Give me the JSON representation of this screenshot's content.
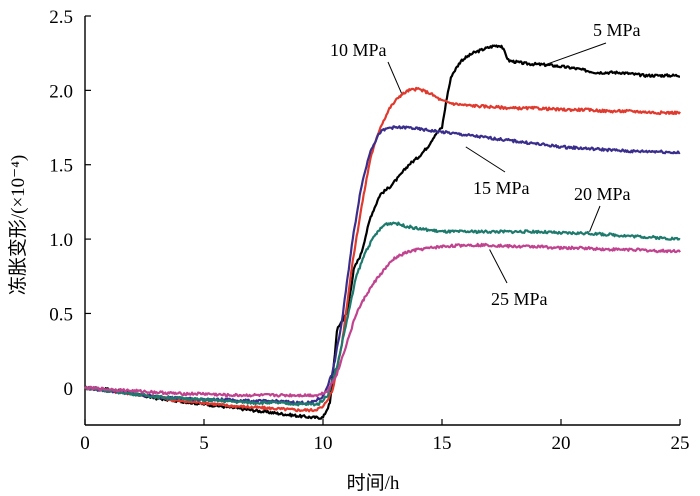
{
  "chart_data": {
    "type": "line",
    "xlabel": "时间/h",
    "ylabel": "冻胀变形/(×10⁻⁴)",
    "xlim": [
      0,
      25
    ],
    "ylim": [
      -0.25,
      2.5
    ],
    "x_ticks": [
      0,
      5,
      10,
      15,
      20,
      25
    ],
    "x_tick_labels": [
      "0",
      "5",
      "10",
      "15",
      "20",
      "25"
    ],
    "y_ticks": [
      0,
      0.5,
      1.0,
      1.5,
      2.0,
      2.5
    ],
    "y_tick_labels": [
      "0",
      "0.5",
      "1.0",
      "1.5",
      "2.0",
      "2.5"
    ],
    "grid": false,
    "legend": "inline labels with leader lines",
    "series": [
      {
        "name": "5 MPa",
        "color": "#000000",
        "label_point": [
          19.3,
          2.17
        ],
        "x": [
          0,
          1,
          2,
          3,
          4,
          5,
          6,
          7,
          8,
          9,
          9.6,
          10.0,
          10.3,
          10.6,
          11.0,
          11.3,
          11.6,
          12.0,
          12.4,
          12.8,
          13.2,
          13.6,
          14.0,
          14.4,
          14.7,
          15.0,
          15.2,
          15.4,
          15.8,
          16.3,
          16.8,
          17.2,
          17.5,
          17.8,
          18.5,
          19.5,
          20.5,
          21.5,
          22.5,
          23.5,
          24.5,
          25
        ],
        "y": [
          0,
          -0.01,
          -0.04,
          -0.07,
          -0.09,
          -0.11,
          -0.13,
          -0.15,
          -0.17,
          -0.19,
          -0.2,
          -0.2,
          -0.1,
          0.4,
          0.5,
          0.8,
          0.9,
          1.15,
          1.3,
          1.35,
          1.42,
          1.5,
          1.55,
          1.62,
          1.7,
          1.75,
          1.95,
          2.1,
          2.2,
          2.25,
          2.28,
          2.3,
          2.3,
          2.2,
          2.18,
          2.17,
          2.15,
          2.12,
          2.12,
          2.1,
          2.1,
          2.1
        ]
      },
      {
        "name": "10 MPa",
        "color": "#e03a2e",
        "label_point": [
          13.3,
          1.98
        ],
        "x": [
          0,
          1,
          2,
          3,
          4,
          5,
          6,
          7,
          8,
          9,
          9.6,
          10.0,
          10.4,
          10.8,
          11.2,
          11.6,
          12.0,
          12.4,
          12.8,
          13.2,
          13.6,
          14.0,
          14.5,
          15.0,
          15.5,
          16.0,
          17.0,
          18.0,
          19.0,
          20.0,
          21.0,
          22.0,
          23.0,
          24.0,
          25
        ],
        "y": [
          0,
          -0.02,
          -0.04,
          -0.06,
          -0.09,
          -0.1,
          -0.12,
          -0.13,
          -0.14,
          -0.15,
          -0.15,
          -0.13,
          -0.02,
          0.3,
          0.8,
          1.2,
          1.55,
          1.75,
          1.88,
          1.96,
          2.0,
          2.01,
          1.98,
          1.93,
          1.91,
          1.9,
          1.89,
          1.88,
          1.88,
          1.87,
          1.87,
          1.86,
          1.86,
          1.85,
          1.85
        ]
      },
      {
        "name": "15 MPa",
        "color": "#3a2e8c",
        "label_point": [
          16.0,
          1.62
        ],
        "x": [
          0,
          1,
          2,
          3,
          4,
          5,
          6,
          7,
          8,
          9,
          9.5,
          10.0,
          10.4,
          10.8,
          11.2,
          11.6,
          12.0,
          12.4,
          12.8,
          13.2,
          13.6,
          14.0,
          14.5,
          15.0,
          16.0,
          17.0,
          18.0,
          19.0,
          20.0,
          21.0,
          22.0,
          23.0,
          24.0,
          25
        ],
        "y": [
          0,
          -0.02,
          -0.04,
          -0.06,
          -0.07,
          -0.08,
          -0.08,
          -0.09,
          -0.09,
          -0.1,
          -0.1,
          -0.06,
          0.1,
          0.45,
          0.95,
          1.35,
          1.6,
          1.72,
          1.75,
          1.75,
          1.75,
          1.74,
          1.73,
          1.72,
          1.7,
          1.68,
          1.66,
          1.64,
          1.62,
          1.61,
          1.6,
          1.59,
          1.59,
          1.58
        ]
      },
      {
        "name": "20 MPa",
        "color": "#1d7a6c",
        "label_point": [
          21.2,
          1.05
        ],
        "x": [
          0,
          1,
          2,
          3,
          4,
          5,
          6,
          7,
          8,
          9,
          9.8,
          10.2,
          10.6,
          11.0,
          11.4,
          11.8,
          12.2,
          12.6,
          13.0,
          13.4,
          14.0,
          15.0,
          16.0,
          17.0,
          18.0,
          19.0,
          20.0,
          21.0,
          22.0,
          23.0,
          24.0,
          25
        ],
        "y": [
          0,
          -0.02,
          -0.04,
          -0.06,
          -0.07,
          -0.08,
          -0.09,
          -0.1,
          -0.1,
          -0.11,
          -0.11,
          -0.05,
          0.15,
          0.45,
          0.75,
          0.92,
          1.03,
          1.1,
          1.11,
          1.09,
          1.07,
          1.05,
          1.05,
          1.05,
          1.05,
          1.05,
          1.04,
          1.04,
          1.03,
          1.02,
          1.01,
          1.0
        ]
      },
      {
        "name": "25 MPa",
        "color": "#c0438f",
        "label_point": [
          17.0,
          0.93
        ],
        "x": [
          0,
          1,
          2,
          3,
          4,
          5,
          6,
          7,
          8,
          9,
          9.8,
          10.2,
          10.6,
          11.0,
          11.4,
          11.8,
          12.2,
          12.6,
          13.0,
          13.5,
          14.0,
          15.0,
          16.0,
          17.0,
          18.0,
          19.0,
          20.0,
          21.0,
          22.0,
          23.0,
          24.0,
          25
        ],
        "y": [
          0,
          -0.01,
          -0.02,
          -0.03,
          -0.04,
          -0.04,
          -0.05,
          -0.05,
          -0.05,
          -0.05,
          -0.05,
          -0.02,
          0.1,
          0.3,
          0.5,
          0.62,
          0.72,
          0.8,
          0.87,
          0.91,
          0.93,
          0.95,
          0.96,
          0.96,
          0.95,
          0.95,
          0.94,
          0.94,
          0.93,
          0.93,
          0.92,
          0.92
        ]
      }
    ]
  }
}
